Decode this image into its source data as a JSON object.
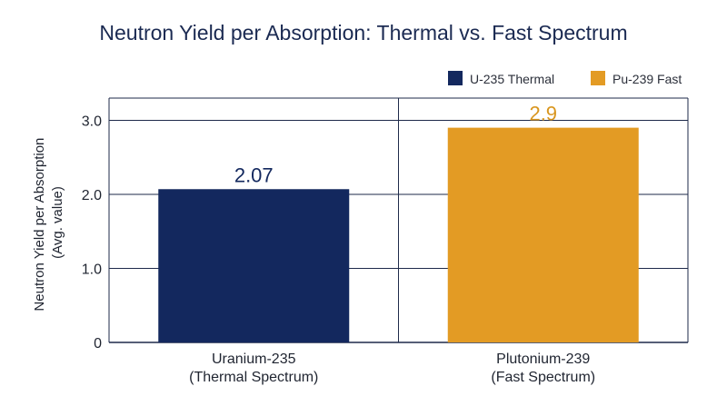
{
  "chart_data": {
    "type": "bar",
    "title": "Neutron Yield per Absorption: Thermal vs. Fast Spectrum",
    "ylabel": [
      "Neutron Yield per Absorption",
      "(Avg. value)"
    ],
    "xlabel": "",
    "ylim": [
      0,
      3.3
    ],
    "yticks": [
      {
        "value": 0,
        "label": "0"
      },
      {
        "value": 1,
        "label": "1.0"
      },
      {
        "value": 2,
        "label": "2.0"
      },
      {
        "value": 3,
        "label": "3.0"
      }
    ],
    "categories": [
      [
        "Uranium-235",
        "(Thermal Spectrum)"
      ],
      [
        "Plutonium-239",
        "(Fast Spectrum)"
      ]
    ],
    "series": [
      {
        "name": "U-235 Thermal",
        "values": [
          2.07,
          null
        ],
        "labels": [
          "2.07",
          null
        ],
        "color": "#13285e",
        "label_color": "#13285e"
      },
      {
        "name": "Pu-239 Fast",
        "values": [
          null,
          2.9
        ],
        "labels": [
          null,
          "2.9"
        ],
        "color": "#e39b24",
        "label_color": "#d9961f"
      }
    ],
    "grid": true,
    "legend": "top-right"
  }
}
